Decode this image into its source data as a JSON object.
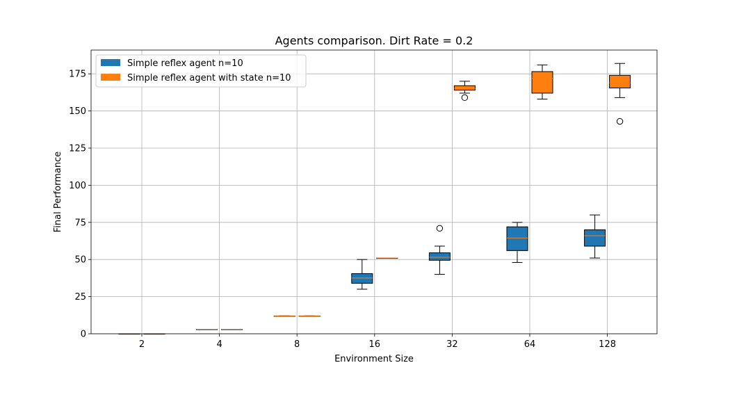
{
  "chart_data": {
    "type": "boxplot",
    "title": "Agents comparison. Dirt Rate = 0.2",
    "xlabel": "Environment Size",
    "ylabel": "Final Performance",
    "categories": [
      "2",
      "4",
      "8",
      "16",
      "32",
      "64",
      "128"
    ],
    "ylim": [
      0,
      191
    ],
    "yticks": [
      0,
      25,
      50,
      75,
      100,
      125,
      150,
      175
    ],
    "grid": true,
    "legend_position": "top-left",
    "series": [
      {
        "name": "Simple reflex agent n=10",
        "color": "#1f77b4",
        "median_color": "#ff7f0e",
        "boxes": [
          {
            "category": "2",
            "whislo": 0,
            "q1": 0,
            "median": 0,
            "q3": 0,
            "whishi": 0,
            "fliers": []
          },
          {
            "category": "4",
            "whislo": 3,
            "q1": 3,
            "median": 3,
            "q3": 3,
            "whishi": 3,
            "fliers": []
          },
          {
            "category": "8",
            "whislo": 12,
            "q1": 12,
            "median": 12,
            "q3": 12,
            "whishi": 12,
            "fliers": []
          },
          {
            "category": "16",
            "whislo": 30,
            "q1": 34,
            "median": 37.5,
            "q3": 40.5,
            "whishi": 50,
            "fliers": []
          },
          {
            "category": "32",
            "whislo": 40,
            "q1": 49.5,
            "median": 51.5,
            "q3": 54.5,
            "whishi": 59,
            "fliers": [
              71
            ]
          },
          {
            "category": "64",
            "whislo": 48,
            "q1": 56,
            "median": 64.5,
            "q3": 72,
            "whishi": 75,
            "fliers": []
          },
          {
            "category": "128",
            "whislo": 51,
            "q1": 59,
            "median": 66,
            "q3": 70,
            "whishi": 80,
            "fliers": []
          }
        ]
      },
      {
        "name": "Simple reflex agent with state n=10",
        "color": "#ff7f0e",
        "median_color": "#ff7f0e",
        "boxes": [
          {
            "category": "2",
            "whislo": 0,
            "q1": 0,
            "median": 0,
            "q3": 0,
            "whishi": 0,
            "fliers": []
          },
          {
            "category": "4",
            "whislo": 3,
            "q1": 3,
            "median": 3,
            "q3": 3,
            "whishi": 3,
            "fliers": []
          },
          {
            "category": "8",
            "whislo": 12,
            "q1": 12,
            "median": 12,
            "q3": 12,
            "whishi": 12,
            "fliers": []
          },
          {
            "category": "16",
            "whislo": 51,
            "q1": 51,
            "median": 51,
            "q3": 51,
            "whishi": 51,
            "fliers": []
          },
          {
            "category": "32",
            "whislo": 162,
            "q1": 164,
            "median": 165,
            "q3": 167,
            "whishi": 170,
            "fliers": [
              159
            ]
          },
          {
            "category": "64",
            "whislo": 158,
            "q1": 162,
            "median": 172,
            "q3": 176.5,
            "whishi": 181,
            "fliers": []
          },
          {
            "category": "128",
            "whislo": 159,
            "q1": 165.5,
            "median": 169,
            "q3": 174,
            "whishi": 182,
            "fliers": [
              143
            ]
          }
        ]
      }
    ]
  }
}
